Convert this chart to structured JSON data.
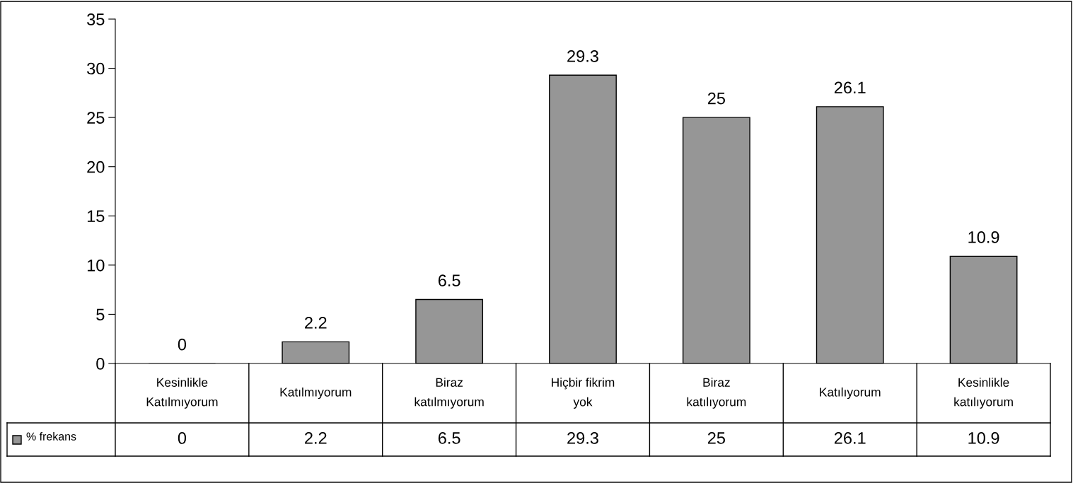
{
  "chart_data": {
    "type": "bar",
    "categories": [
      "Kesinlikle\nKatılmıyorum",
      "Katılmıyorum",
      "Biraz\nkatılmıyorum",
      "Hiçbir fikrim\nyok",
      "Biraz\nkatılıyorum",
      "Katılıyorum",
      "Kesinlikle\nkatılıyorum"
    ],
    "series": [
      {
        "name": "% frekans",
        "color": "#969696",
        "values": [
          0,
          2.2,
          6.5,
          29.3,
          25,
          26.1,
          10.9
        ],
        "value_labels": [
          "0",
          "2.2",
          "6.5",
          "29.3",
          "25",
          "26.1",
          "10.9"
        ]
      }
    ],
    "ylim": [
      0,
      35
    ],
    "yticks": [
      0,
      5,
      10,
      15,
      20,
      25,
      30,
      35
    ],
    "annotations": [
      "0",
      "2.2",
      "6.5",
      "29.3",
      "25",
      "26.1",
      "10.9"
    ],
    "legend": "bottom left",
    "grid": false
  }
}
